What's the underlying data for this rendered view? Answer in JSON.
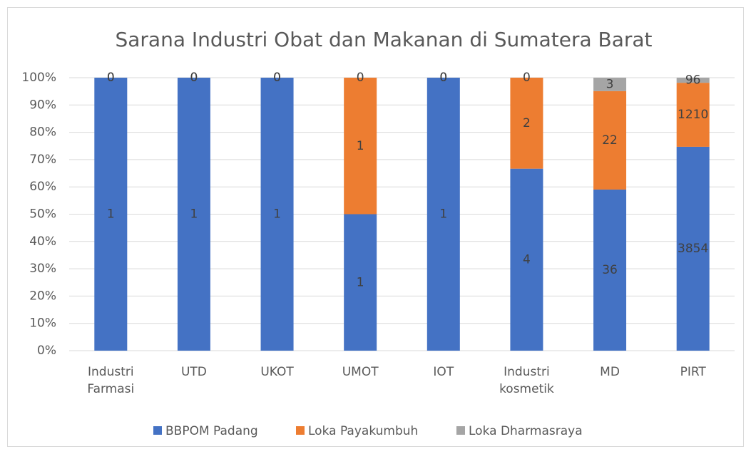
{
  "chart_data": {
    "type": "bar",
    "stacking": "percent",
    "title": "Sarana Industri Obat dan Makanan di Sumatera Barat",
    "categories": [
      "Industri Farmasi",
      "UTD",
      "UKOT",
      "UMOT",
      "IOT",
      "Industri kosmetik",
      "MD",
      "PIRT"
    ],
    "series": [
      {
        "name": "BBPOM Padang",
        "color": "#4472c4",
        "values": [
          1,
          1,
          1,
          1,
          1,
          4,
          36,
          3854
        ]
      },
      {
        "name": "Loka Payakumbuh",
        "color": "#ed7d31",
        "values": [
          0,
          0,
          0,
          1,
          0,
          2,
          22,
          1210
        ]
      },
      {
        "name": "Loka Dharmasraya",
        "color": "#a5a5a5",
        "values": [
          0,
          0,
          0,
          0,
          0,
          0,
          3,
          96
        ]
      }
    ],
    "ylim": [
      0,
      100
    ],
    "yticks": [
      {
        "value": 0,
        "label": "0%"
      },
      {
        "value": 10,
        "label": "10%"
      },
      {
        "value": 20,
        "label": "20%"
      },
      {
        "value": 30,
        "label": "30%"
      },
      {
        "value": 40,
        "label": "40%"
      },
      {
        "value": 50,
        "label": "50%"
      },
      {
        "value": 60,
        "label": "60%"
      },
      {
        "value": 70,
        "label": "70%"
      },
      {
        "value": 80,
        "label": "80%"
      },
      {
        "value": 90,
        "label": "90%"
      },
      {
        "value": 100,
        "label": "100%"
      }
    ],
    "grid": true,
    "legend": "bottom"
  }
}
